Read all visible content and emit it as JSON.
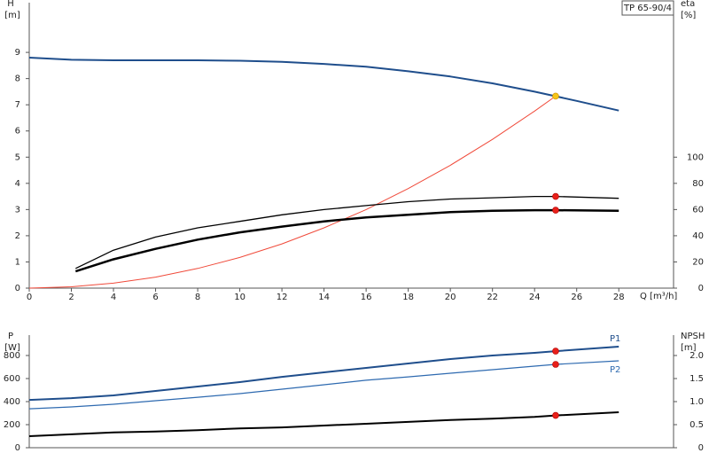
{
  "chart_data": [
    {
      "type": "line",
      "title": "TP 65-90/4",
      "y_label": "H",
      "y_unit": "[m]",
      "y2_label": "eta",
      "y2_unit": "[%]",
      "x_label": "Q [m³/h]",
      "xlim": [
        0,
        30.6
      ],
      "xticks": [
        0,
        2,
        4,
        6,
        8,
        10,
        12,
        14,
        16,
        18,
        20,
        22,
        24,
        26,
        28
      ],
      "ylim": [
        0,
        11
      ],
      "yticks": [
        0,
        1,
        2,
        3,
        4,
        5,
        6,
        7,
        8,
        9
      ],
      "y2lim": [
        0,
        220
      ],
      "y2ticks": [
        0,
        20,
        40,
        60,
        80,
        100
      ],
      "series": [
        {
          "color": "#1f4e8c",
          "linewidth": 2,
          "x": [
            0,
            2,
            4,
            6,
            8,
            10,
            12,
            14,
            16,
            18,
            20,
            22,
            24,
            26,
            28
          ],
          "values": [
            8.8,
            8.72,
            8.7,
            8.7,
            8.7,
            8.68,
            8.64,
            8.56,
            8.45,
            8.28,
            8.08,
            7.82,
            7.5,
            7.15,
            6.78
          ]
        },
        {
          "color": "#f04a3a",
          "linewidth": 1,
          "x": [
            0,
            2,
            4,
            6,
            8,
            10,
            12,
            14,
            16,
            18,
            20,
            22,
            24,
            25
          ],
          "values": [
            0,
            0.05,
            0.19,
            0.42,
            0.75,
            1.17,
            1.69,
            2.3,
            3.0,
            3.8,
            4.69,
            5.68,
            6.76,
            7.33
          ]
        },
        {
          "color": "#000000",
          "linewidth": 1.3,
          "axis": "y2",
          "x": [
            2.2,
            4,
            6,
            8,
            10,
            12,
            14,
            16,
            18,
            20,
            22,
            24,
            25,
            28
          ],
          "values": [
            15,
            29,
            39,
            46,
            51,
            56,
            60,
            63,
            66,
            68,
            69,
            70,
            70,
            68.6
          ]
        },
        {
          "color": "#000000",
          "linewidth": 2.5,
          "axis": "y2",
          "x": [
            2.2,
            4,
            6,
            8,
            10,
            12,
            14,
            16,
            18,
            20,
            22,
            24,
            25,
            28
          ],
          "values": [
            12.8,
            22,
            30,
            37,
            42.6,
            47,
            51,
            54,
            56,
            58,
            59,
            59.5,
            59.5,
            59
          ]
        },
        {
          "color": "#f5c518",
          "marker": true,
          "x": [
            25
          ],
          "values": [
            7.33
          ]
        },
        {
          "color": "#e8201a",
          "marker": true,
          "axis": "y2",
          "x": [
            25
          ],
          "values": [
            70
          ]
        },
        {
          "color": "#e8201a",
          "marker": true,
          "axis": "y2",
          "x": [
            25
          ],
          "values": [
            59.5
          ]
        }
      ]
    },
    {
      "type": "line",
      "y_label": "P",
      "y_unit": "[W]",
      "y2_label": "NPSH",
      "y2_unit": "[m]",
      "xlim": [
        0,
        30.6
      ],
      "ylim": [
        0,
        1000
      ],
      "yticks": [
        0,
        200,
        400,
        600,
        800
      ],
      "y2lim": [
        0,
        2.5
      ],
      "y2ticks": [
        0,
        0.5,
        {
          "value": 1.0,
          "label": "1.0"
        },
        1.5,
        {
          "value": 2.0,
          "label": "2.0"
        }
      ],
      "series": [
        {
          "name": "P1",
          "color": "#1f4e8c",
          "linewidth": 2,
          "x": [
            0,
            2,
            4,
            6,
            8,
            10,
            12,
            14,
            16,
            18,
            20,
            22,
            24,
            25,
            28
          ],
          "values": [
            415,
            430,
            454,
            492,
            531,
            569,
            615,
            654,
            692,
            731,
            769,
            800,
            823,
            838,
            877
          ]
        },
        {
          "name": "P2",
          "color": "#2e6ab0",
          "linewidth": 1.2,
          "x": [
            0,
            2,
            4,
            6,
            8,
            10,
            12,
            14,
            16,
            18,
            20,
            22,
            24,
            25,
            28
          ],
          "values": [
            338,
            354,
            377,
            408,
            438,
            469,
            508,
            546,
            585,
            615,
            646,
            677,
            708,
            723,
            754
          ]
        },
        {
          "color": "#000000",
          "linewidth": 2,
          "axis": "y2",
          "x": [
            0,
            2,
            4,
            6,
            8,
            10,
            12,
            14,
            16,
            18,
            20,
            22,
            24,
            25,
            28
          ],
          "values": [
            0.25,
            0.29,
            0.33,
            0.35,
            0.38,
            0.42,
            0.44,
            0.48,
            0.52,
            0.56,
            0.6,
            0.63,
            0.67,
            0.7,
            0.77
          ]
        },
        {
          "color": "#e8201a",
          "marker": true,
          "x": [
            25
          ],
          "values": [
            838
          ]
        },
        {
          "color": "#e8201a",
          "marker": true,
          "x": [
            25
          ],
          "values": [
            723
          ]
        },
        {
          "color": "#e8201a",
          "marker": true,
          "axis": "y2",
          "x": [
            25
          ],
          "values": [
            0.7
          ]
        }
      ]
    }
  ]
}
